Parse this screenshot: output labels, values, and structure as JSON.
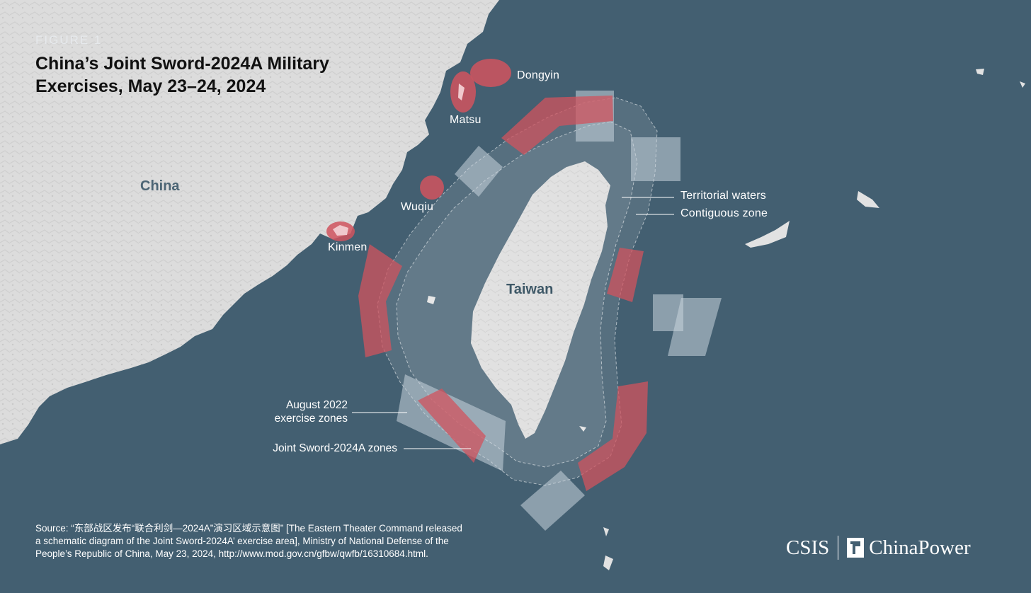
{
  "figure_label": "FIGURE 1",
  "title": {
    "line1": "China’s Joint Sword-2024A Military",
    "line2": "Exercises, May 23–24, 2024"
  },
  "places": {
    "china": "China",
    "taiwan": "Taiwan",
    "dongyin": "Dongyin",
    "matsu": "Matsu",
    "wuqiu": "Wuqiu",
    "kinmen": "Kinmen"
  },
  "annotations": {
    "territorial_waters": "Territorial waters",
    "contiguous_zone": "Contiguous zone",
    "aug2022_line1": "August 2022",
    "aug2022_line2": "exercise zones",
    "joint_sword": "Joint Sword-2024A zones"
  },
  "source": {
    "line1": "Source: “东部战区发布“联合利剑—2024A”演习区域示意图” [The Eastern Theater Command released",
    "line2": "a schematic diagram of the Joint Sword-2024A’ exercise area], Ministry of National Defense of the",
    "line3": "People’s Republic of China, May 23, 2024, http://www.mod.gov.cn/gfbw/qwfb/16310684.html."
  },
  "brand": {
    "csis": "CSIS",
    "chinapower": "ChinaPower"
  },
  "colors": {
    "sea": "#435f71",
    "land": "#dedede",
    "joint_sword_zone": "#c0555e",
    "aug2022_zone": "#b7c4cc"
  }
}
